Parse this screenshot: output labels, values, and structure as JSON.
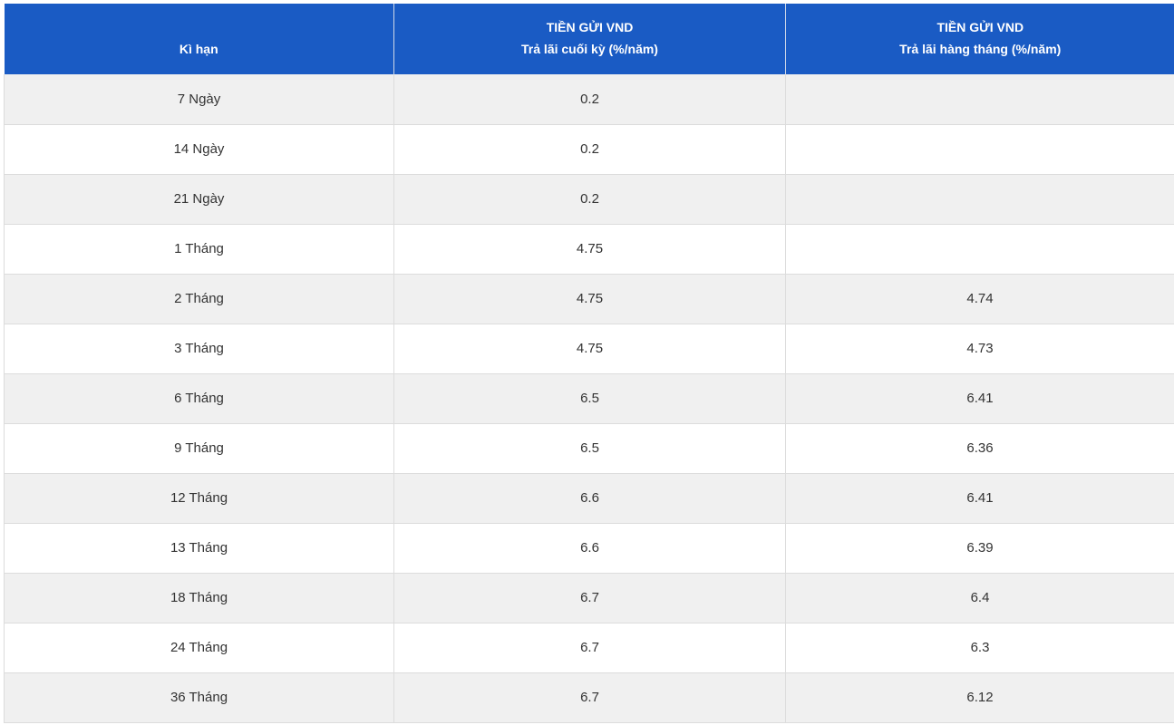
{
  "table": {
    "header": [
      [
        "Kì hạn"
      ],
      [
        "TIỀN GỬI VND",
        "Trả lãi cuối kỳ (%/năm)"
      ],
      [
        "TIỀN GỬI VND",
        "Trả lãi hàng tháng (%/năm)"
      ]
    ],
    "rows": [
      [
        "7 Ngày",
        "0.2",
        null
      ],
      [
        "14 Ngày",
        "0.2",
        null
      ],
      [
        "21 Ngày",
        "0.2",
        null
      ],
      [
        "1 Tháng",
        "4.75",
        null
      ],
      [
        "2 Tháng",
        "4.75",
        "4.74"
      ],
      [
        "3 Tháng",
        "4.75",
        "4.73"
      ],
      [
        "6 Tháng",
        "6.5",
        "6.41"
      ],
      [
        "9 Tháng",
        "6.5",
        "6.36"
      ],
      [
        "12 Tháng",
        "6.6",
        "6.41"
      ],
      [
        "13 Tháng",
        "6.6",
        "6.39"
      ],
      [
        "18 Tháng",
        "6.7",
        "6.4"
      ],
      [
        "24 Tháng",
        "6.7",
        "6.3"
      ],
      [
        "36 Tháng",
        "6.7",
        "6.12"
      ]
    ]
  }
}
